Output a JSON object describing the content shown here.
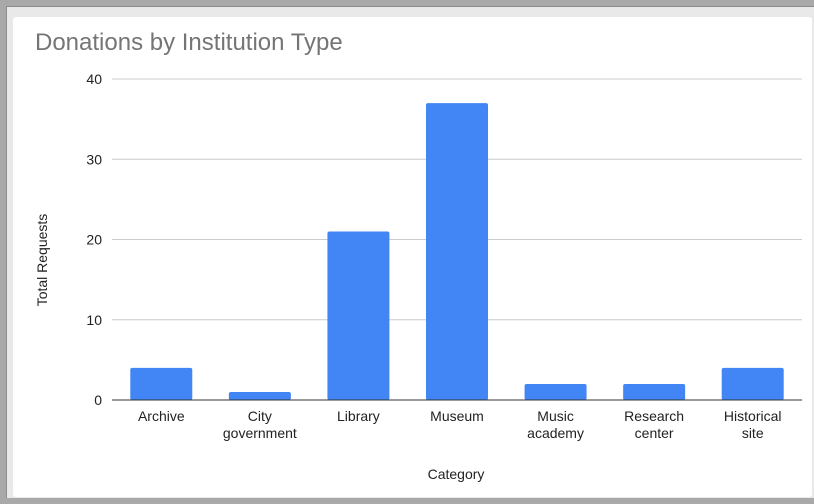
{
  "chart_data": {
    "type": "bar",
    "title": "Donations by Institution Type",
    "xlabel": "Category",
    "ylabel": "Total Requests",
    "categories": [
      [
        "Archive"
      ],
      [
        "City",
        "government"
      ],
      [
        "Library"
      ],
      [
        "Museum"
      ],
      [
        "Music",
        "academy"
      ],
      [
        "Research",
        "center"
      ],
      [
        "Historical",
        "site"
      ]
    ],
    "values": [
      4,
      1,
      21,
      37,
      2,
      2,
      4
    ],
    "ylim": [
      0,
      40
    ],
    "yticks": [
      0,
      10,
      20,
      30,
      40
    ],
    "grid": true,
    "bar_color": "#4285f4",
    "legend": "none"
  }
}
